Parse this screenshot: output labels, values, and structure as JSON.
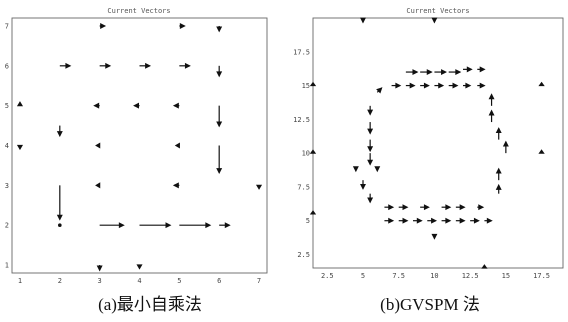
{
  "chart_data": [
    {
      "type": "quiver",
      "title": "Current Vectors",
      "caption": "(a)最小自乘法",
      "xticks": [
        "1",
        "2",
        "3",
        "4",
        "5",
        "6",
        "7"
      ],
      "yticks": [
        "1",
        "2",
        "3",
        "4",
        "5",
        "6",
        "7"
      ],
      "xlim": [
        0.8,
        7.2
      ],
      "ylim": [
        0.8,
        7.2
      ],
      "vectors": [
        {
          "x": 3,
          "y": 7,
          "u": 0.15,
          "v": 0
        },
        {
          "x": 5,
          "y": 7,
          "u": 0.15,
          "v": 0
        },
        {
          "x": 6,
          "y": 7,
          "u": 0,
          "v": -0.15
        },
        {
          "x": 2,
          "y": 6,
          "u": 0.3,
          "v": 0
        },
        {
          "x": 3,
          "y": 6,
          "u": 0.3,
          "v": 0
        },
        {
          "x": 4,
          "y": 6,
          "u": 0.3,
          "v": 0
        },
        {
          "x": 5,
          "y": 6,
          "u": 0.3,
          "v": 0
        },
        {
          "x": 6,
          "y": 6,
          "u": 0,
          "v": -0.3
        },
        {
          "x": 1,
          "y": 5,
          "u": 0,
          "v": 0.1
        },
        {
          "x": 3,
          "y": 5,
          "u": -0.15,
          "v": 0
        },
        {
          "x": 4,
          "y": 5,
          "u": -0.15,
          "v": 0
        },
        {
          "x": 5,
          "y": 5,
          "u": -0.15,
          "v": 0
        },
        {
          "x": 6,
          "y": 5,
          "u": 0,
          "v": -0.6
        },
        {
          "x": 2,
          "y": 4.5,
          "u": 0,
          "v": -0.3
        },
        {
          "x": 1,
          "y": 4,
          "u": 0,
          "v": -0.1
        },
        {
          "x": 3,
          "y": 4,
          "u": -0.1,
          "v": 0
        },
        {
          "x": 5,
          "y": 4,
          "u": -0.1,
          "v": 0
        },
        {
          "x": 6,
          "y": 4,
          "u": 0,
          "v": -0.8
        },
        {
          "x": 2,
          "y": 3,
          "u": 0,
          "v": -1.0
        },
        {
          "x": 3,
          "y": 3,
          "u": -0.1,
          "v": 0
        },
        {
          "x": 5,
          "y": 3,
          "u": -0.15,
          "v": 0
        },
        {
          "x": 7,
          "y": 3,
          "u": 0,
          "v": -0.1
        },
        {
          "x": 2,
          "y": 2,
          "u": 0,
          "v": 0
        },
        {
          "x": 3,
          "y": 2,
          "u": 0.7,
          "v": 0
        },
        {
          "x": 4,
          "y": 2,
          "u": 0.9,
          "v": 0
        },
        {
          "x": 5,
          "y": 2,
          "u": 0.9,
          "v": 0
        },
        {
          "x": 6,
          "y": 2,
          "u": 0.3,
          "v": 0
        },
        {
          "x": 3,
          "y": 1,
          "u": 0,
          "v": -0.15
        },
        {
          "x": 4,
          "y": 1,
          "u": 0,
          "v": -0.1
        }
      ]
    },
    {
      "type": "quiver",
      "title": "Current Vectors",
      "caption": "(b)GVSPM 法",
      "xticks": [
        "2.5",
        "5",
        "7.5",
        "10",
        "12.5",
        "15",
        "17.5"
      ],
      "yticks": [
        "2.5",
        "5",
        "7.5",
        "10",
        "12.5",
        "15",
        "17.5"
      ],
      "xlim": [
        1.5,
        19
      ],
      "ylim": [
        1.5,
        20
      ],
      "vectors": [
        {
          "x": 5,
          "y": 20,
          "u": 0,
          "v": -0.3
        },
        {
          "x": 10,
          "y": 20,
          "u": 0,
          "v": -0.3
        },
        {
          "x": 8,
          "y": 16,
          "u": 0.8,
          "v": 0
        },
        {
          "x": 9,
          "y": 16,
          "u": 0.8,
          "v": 0
        },
        {
          "x": 10,
          "y": 16,
          "u": 0.8,
          "v": 0
        },
        {
          "x": 11,
          "y": 16,
          "u": 0.8,
          "v": 0
        },
        {
          "x": 12,
          "y": 16.2,
          "u": 0.6,
          "v": 0
        },
        {
          "x": 13,
          "y": 16.2,
          "u": 0.5,
          "v": 0
        },
        {
          "x": 1.5,
          "y": 15,
          "u": 0,
          "v": 0.2
        },
        {
          "x": 7,
          "y": 15,
          "u": 0.6,
          "v": 0
        },
        {
          "x": 8,
          "y": 15,
          "u": 0.6,
          "v": 0
        },
        {
          "x": 9,
          "y": 15,
          "u": 0.6,
          "v": 0
        },
        {
          "x": 10,
          "y": 15,
          "u": 0.6,
          "v": 0
        },
        {
          "x": 11,
          "y": 15,
          "u": 0.6,
          "v": 0
        },
        {
          "x": 12,
          "y": 15,
          "u": 0.5,
          "v": 0
        },
        {
          "x": 13,
          "y": 15,
          "u": 0.5,
          "v": 0
        },
        {
          "x": 17.5,
          "y": 15,
          "u": 0,
          "v": 0.2
        },
        {
          "x": 6,
          "y": 14.5,
          "u": 0.3,
          "v": 0.3
        },
        {
          "x": 5.5,
          "y": 13.5,
          "u": 0,
          "v": -0.6
        },
        {
          "x": 14,
          "y": 13.5,
          "u": 0,
          "v": 0.8
        },
        {
          "x": 14,
          "y": 12.3,
          "u": 0,
          "v": 0.8
        },
        {
          "x": 5.5,
          "y": 12.3,
          "u": 0,
          "v": -0.8
        },
        {
          "x": 5.5,
          "y": 11,
          "u": 0,
          "v": -0.8
        },
        {
          "x": 14.5,
          "y": 11,
          "u": 0,
          "v": 0.8
        },
        {
          "x": 5.5,
          "y": 10,
          "u": 0,
          "v": -0.8
        },
        {
          "x": 15,
          "y": 10,
          "u": 0,
          "v": 0.8
        },
        {
          "x": 1.5,
          "y": 10,
          "u": 0,
          "v": 0.2
        },
        {
          "x": 17.5,
          "y": 10,
          "u": 0,
          "v": 0.2
        },
        {
          "x": 4.5,
          "y": 9,
          "u": 0,
          "v": -0.3
        },
        {
          "x": 6,
          "y": 9,
          "u": 0,
          "v": -0.3
        },
        {
          "x": 5,
          "y": 8,
          "u": 0,
          "v": -0.6
        },
        {
          "x": 14.5,
          "y": 8,
          "u": 0,
          "v": 0.8
        },
        {
          "x": 5.5,
          "y": 7,
          "u": 0,
          "v": -0.6
        },
        {
          "x": 14.5,
          "y": 7,
          "u": 0,
          "v": 0.6
        },
        {
          "x": 6.5,
          "y": 6,
          "u": 0.6,
          "v": 0
        },
        {
          "x": 7.5,
          "y": 6,
          "u": 0.6,
          "v": 0
        },
        {
          "x": 9,
          "y": 6,
          "u": 0.6,
          "v": 0
        },
        {
          "x": 10.5,
          "y": 6,
          "u": 0.6,
          "v": 0
        },
        {
          "x": 11.5,
          "y": 6,
          "u": 0.6,
          "v": 0
        },
        {
          "x": 13,
          "y": 6,
          "u": 0.4,
          "v": 0
        },
        {
          "x": 1.5,
          "y": 5.5,
          "u": 0,
          "v": 0.2
        },
        {
          "x": 6.5,
          "y": 5,
          "u": 0.6,
          "v": 0
        },
        {
          "x": 7.5,
          "y": 5,
          "u": 0.6,
          "v": 0
        },
        {
          "x": 8.5,
          "y": 5,
          "u": 0.6,
          "v": 0
        },
        {
          "x": 9.5,
          "y": 5,
          "u": 0.6,
          "v": 0
        },
        {
          "x": 10.5,
          "y": 5,
          "u": 0.6,
          "v": 0
        },
        {
          "x": 11.5,
          "y": 5,
          "u": 0.6,
          "v": 0
        },
        {
          "x": 12.5,
          "y": 5,
          "u": 0.6,
          "v": 0
        },
        {
          "x": 13.5,
          "y": 5,
          "u": 0.5,
          "v": 0
        },
        {
          "x": 10,
          "y": 4,
          "u": 0,
          "v": -0.3
        },
        {
          "x": 13.5,
          "y": 1.5,
          "u": 0,
          "v": 0.2
        }
      ]
    }
  ]
}
